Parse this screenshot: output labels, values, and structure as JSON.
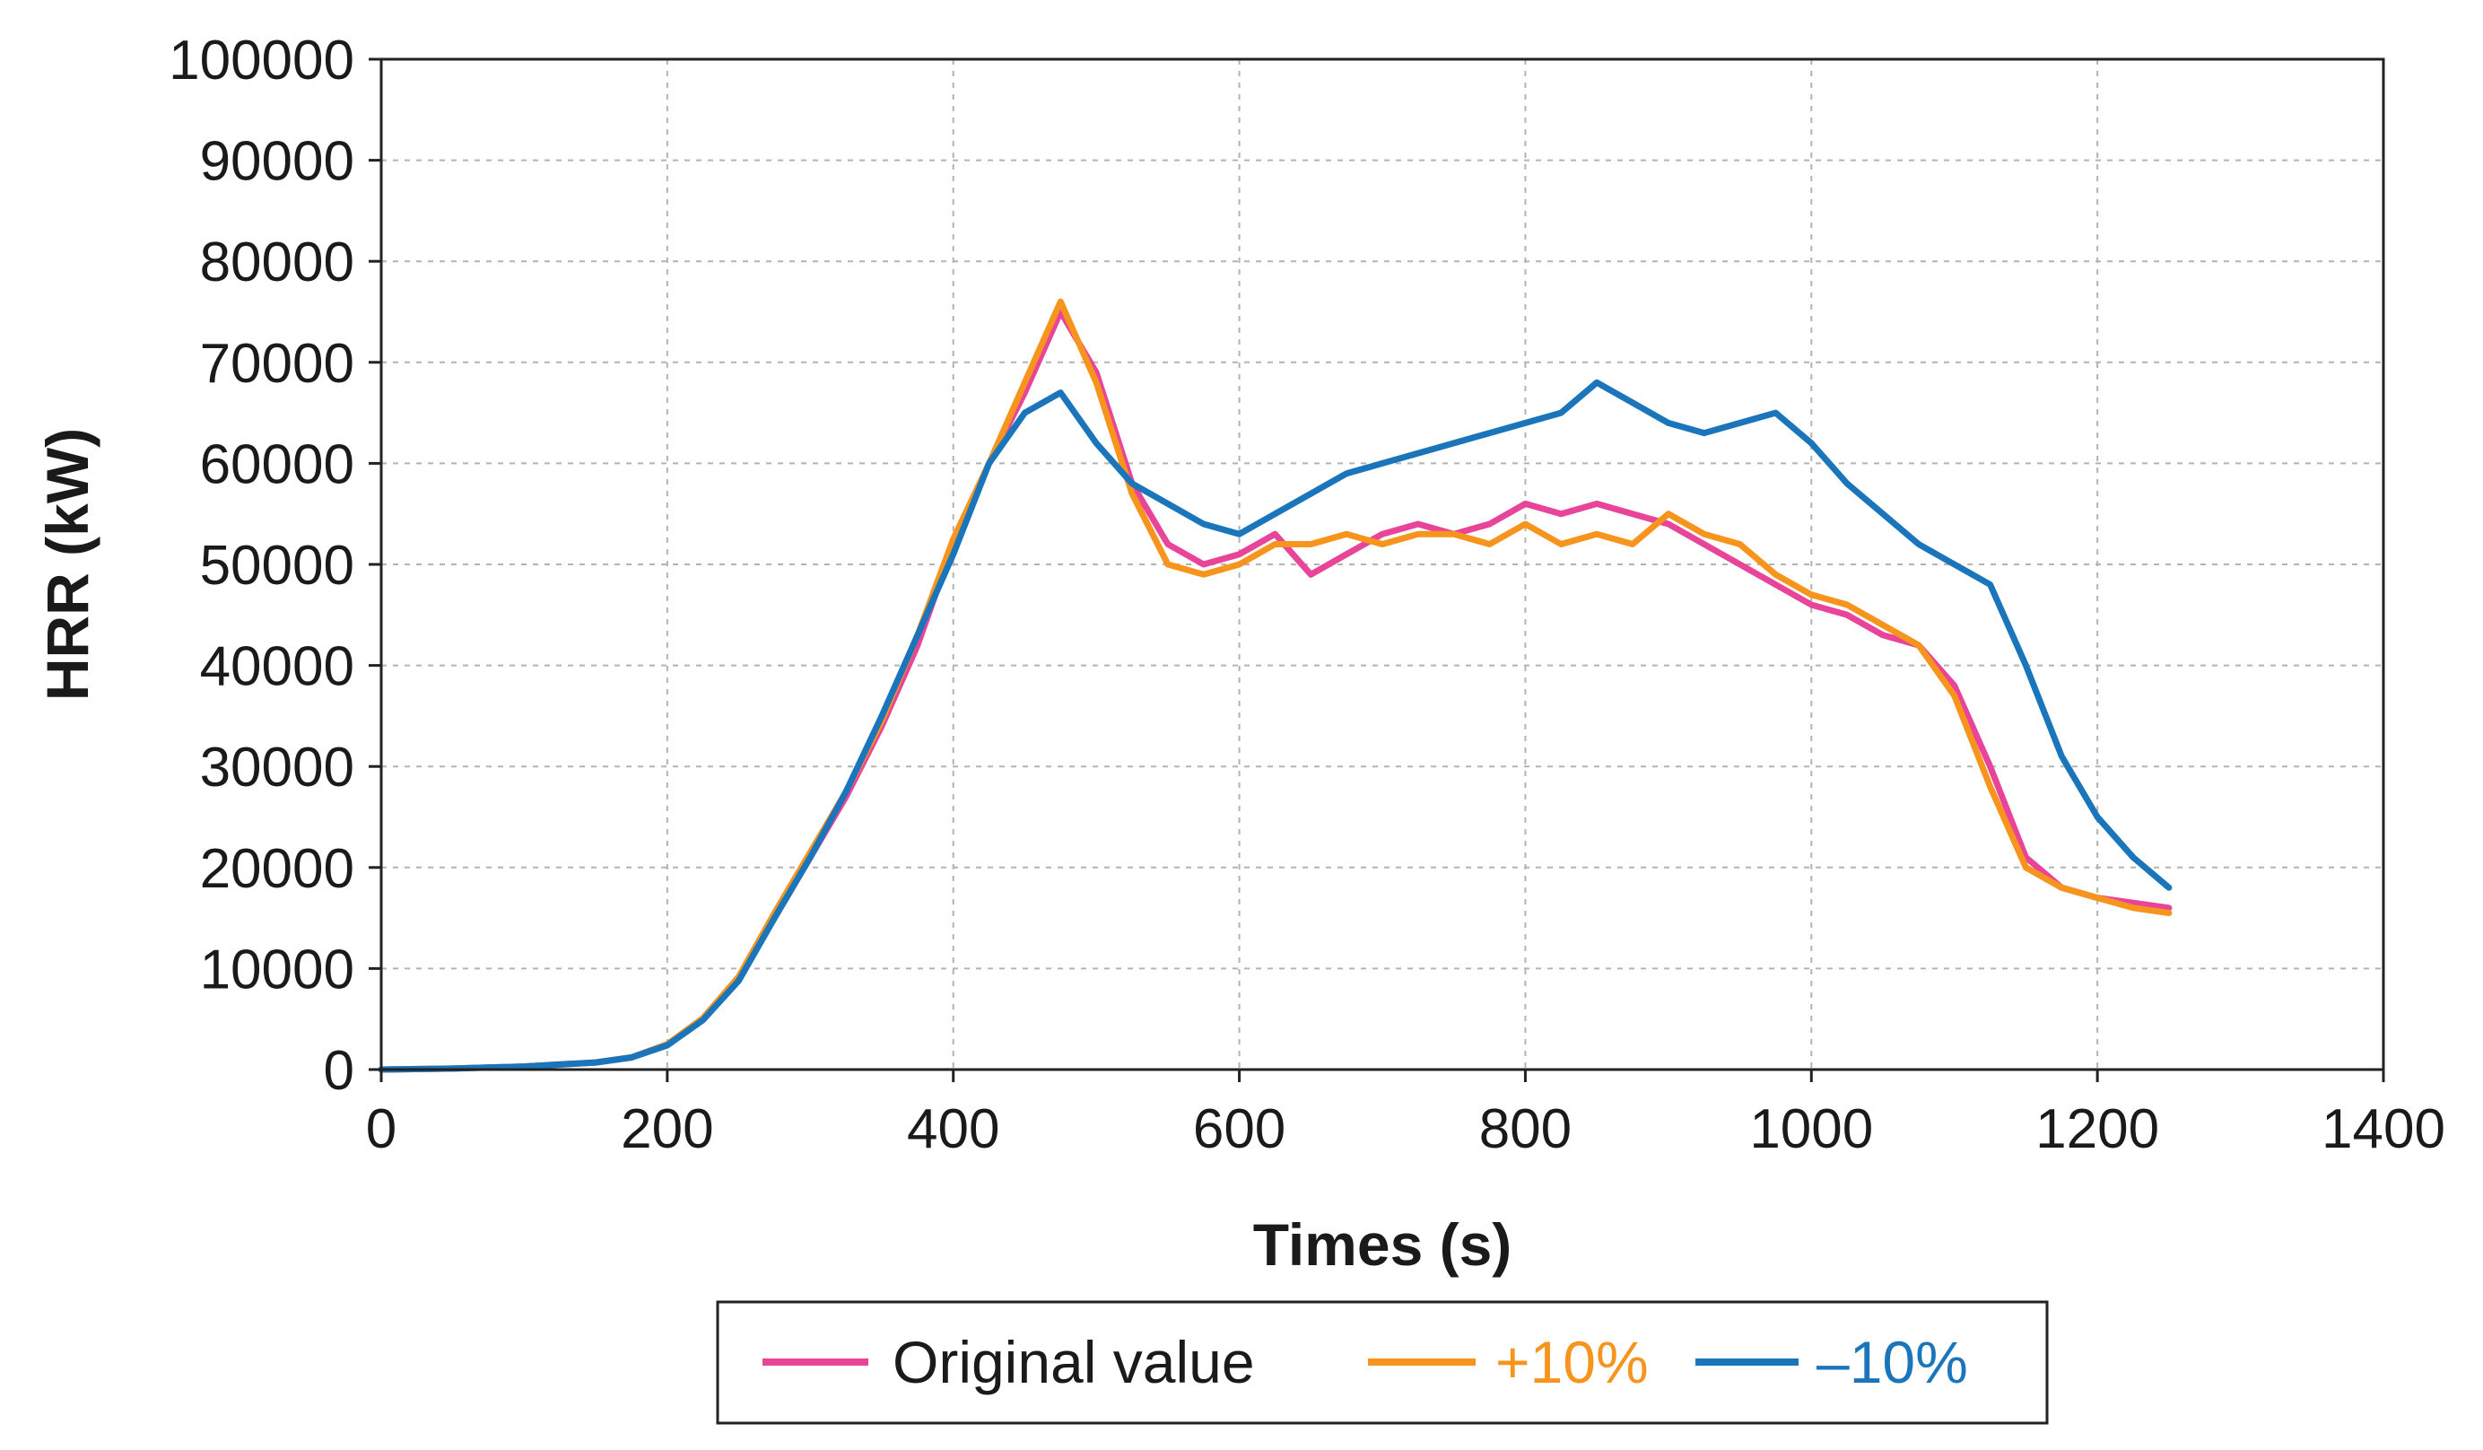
{
  "chart_data": {
    "type": "line",
    "title": "",
    "xlabel": "Times (s)",
    "ylabel": "HRR (kW)",
    "xlim": [
      0,
      1400
    ],
    "ylim": [
      0,
      100000
    ],
    "x_ticks": [
      "0",
      "200",
      "400",
      "600",
      "800",
      "1000",
      "1200",
      "1400"
    ],
    "y_ticks": [
      "0",
      "10000",
      "20000",
      "30000",
      "40000",
      "50000",
      "60000",
      "70000",
      "80000",
      "90000",
      "100000"
    ],
    "grid": true,
    "legend_position": "bottom-center",
    "x": [
      0,
      50,
      100,
      150,
      175,
      200,
      225,
      250,
      275,
      300,
      325,
      350,
      375,
      400,
      425,
      450,
      475,
      500,
      525,
      550,
      575,
      600,
      625,
      650,
      675,
      700,
      725,
      750,
      775,
      800,
      825,
      850,
      875,
      900,
      925,
      950,
      975,
      1000,
      1025,
      1050,
      1075,
      1100,
      1125,
      1150,
      1175,
      1200,
      1225,
      1250
    ],
    "series": [
      {
        "name": "Original value",
        "color": "#e8449a",
        "values": [
          0,
          100,
          300,
          700,
          1200,
          2500,
          5000,
          9000,
          15000,
          21000,
          27000,
          34000,
          42000,
          52000,
          60000,
          67000,
          75000,
          69000,
          58000,
          52000,
          50000,
          51000,
          53000,
          49000,
          51000,
          53000,
          54000,
          53000,
          54000,
          56000,
          55000,
          56000,
          55000,
          54000,
          52000,
          50000,
          48000,
          46000,
          45000,
          43000,
          42000,
          38000,
          30000,
          21000,
          18000,
          17000,
          16500,
          16000
        ]
      },
      {
        "name": "+10%",
        "color": "#f7941d",
        "values": [
          0,
          100,
          300,
          700,
          1200,
          2500,
          5100,
          9200,
          15500,
          21500,
          27500,
          34500,
          43000,
          52500,
          60000,
          68000,
          76000,
          68000,
          57000,
          50000,
          49000,
          50000,
          52000,
          52000,
          53000,
          52000,
          53000,
          53000,
          52000,
          54000,
          52000,
          53000,
          52000,
          55000,
          53000,
          52000,
          49000,
          47000,
          46000,
          44000,
          42000,
          37000,
          28000,
          20000,
          18000,
          17000,
          16000,
          15500
        ]
      },
      {
        "name": "–10%",
        "color": "#1a75bb",
        "values": [
          0,
          100,
          300,
          700,
          1200,
          2400,
          4900,
          8800,
          15000,
          21000,
          27500,
          35000,
          43000,
          51000,
          60000,
          65000,
          67000,
          62000,
          58000,
          56000,
          54000,
          53000,
          55000,
          57000,
          59000,
          60000,
          61000,
          62000,
          63000,
          64000,
          65000,
          68000,
          66000,
          64000,
          63000,
          64000,
          65000,
          62000,
          58000,
          55000,
          52000,
          50000,
          48000,
          40000,
          31000,
          25000,
          21000,
          18000
        ]
      }
    ]
  },
  "legend": {
    "items": [
      {
        "label": "Original value",
        "color": "#e8449a",
        "text_color": "#1a1a1a"
      },
      {
        "label": "+10%",
        "color": "#f7941d",
        "text_color": "#f7941d"
      },
      {
        "label": "–10%",
        "color": "#1a75bb",
        "text_color": "#1a75bb"
      }
    ]
  }
}
